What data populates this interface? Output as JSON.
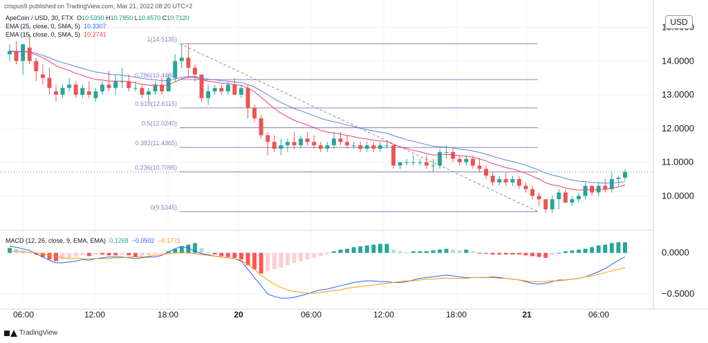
{
  "header_note": "crispus9 published on TradingView.com, Mar 21, 2022 08:20 UTC+2",
  "ohlc": {
    "symbol": "ApeCoin / USD, 30, FTX",
    "o_label": "O",
    "o": "10.5390",
    "h_label": "H",
    "h": "10.7850",
    "l_label": "L",
    "l": "10.4570",
    "c_label": "C",
    "c": "10.7120"
  },
  "ema25": {
    "label": "EMA (25, close, 0, SMA, 5)",
    "value": "10.3307"
  },
  "ema15": {
    "label": "EMA (15, close, 0, SMA, 5)",
    "value": "10.2741"
  },
  "macd": {
    "label": "MACD (12, 26, close, 9, EMA, EMA)",
    "hist": "0.1268",
    "macd": "−0.0502",
    "signal": "−0.1771"
  },
  "currency": "USD",
  "footer": "TradingView",
  "colors": {
    "up": "#26a69a",
    "down": "#ef5350",
    "ema25": "#5b7fe8",
    "ema15": "#ef3b6e",
    "fib": "#8e7cc3",
    "macd": "#2962ff",
    "signal": "#ff9800"
  },
  "chart_data": [
    {
      "type": "candlestick",
      "title": "ApeCoin / USD, 30, FTX",
      "x": [
        "06:00",
        "12:00",
        "18:00",
        "20",
        "06:00",
        "12:00",
        "18:00",
        "21",
        "06:00"
      ],
      "ylim": [
        9.0,
        15.4
      ],
      "yticks": [
        "10.0000",
        "11.0000",
        "12.0000",
        "13.0000",
        "14.0000",
        "15.0000"
      ],
      "price_label": "10.7120",
      "candles": [
        [
          14.2,
          14.5,
          14.0,
          14.3
        ],
        [
          14.3,
          14.6,
          13.9,
          14.0
        ],
        [
          14.0,
          14.5,
          13.6,
          14.5
        ],
        [
          14.4,
          14.8,
          13.9,
          14.0
        ],
        [
          14.0,
          14.1,
          13.4,
          13.7
        ],
        [
          13.6,
          13.9,
          13.3,
          13.5
        ],
        [
          13.5,
          13.8,
          13.0,
          13.2
        ],
        [
          13.1,
          13.3,
          12.8,
          13.0
        ],
        [
          13.0,
          13.3,
          12.9,
          13.2
        ],
        [
          13.2,
          13.5,
          13.1,
          13.3
        ],
        [
          13.3,
          13.4,
          12.9,
          13.0
        ],
        [
          13.0,
          13.3,
          12.9,
          13.2
        ],
        [
          13.1,
          13.4,
          12.9,
          13.0
        ],
        [
          12.9,
          13.2,
          12.8,
          13.1
        ],
        [
          13.1,
          13.4,
          13.0,
          13.3
        ],
        [
          13.3,
          13.7,
          13.1,
          13.2
        ],
        [
          13.2,
          13.6,
          13.0,
          13.4
        ],
        [
          13.4,
          13.8,
          13.2,
          13.4
        ],
        [
          13.4,
          13.6,
          13.1,
          13.2
        ],
        [
          13.2,
          13.4,
          13.1,
          13.2
        ],
        [
          13.2,
          13.3,
          12.9,
          13.0
        ],
        [
          13.0,
          13.2,
          12.8,
          13.1
        ],
        [
          13.1,
          13.4,
          13.0,
          13.3
        ],
        [
          13.3,
          13.5,
          13.0,
          13.1
        ],
        [
          13.1,
          13.6,
          13.1,
          13.5
        ],
        [
          13.5,
          14.2,
          13.4,
          14.0
        ],
        [
          14.0,
          14.5,
          13.8,
          14.1
        ],
        [
          14.1,
          14.5,
          13.5,
          13.8
        ],
        [
          13.8,
          13.9,
          13.4,
          13.6
        ],
        [
          13.6,
          13.6,
          12.8,
          12.9
        ],
        [
          12.9,
          13.3,
          12.7,
          13.1
        ],
        [
          13.1,
          13.3,
          13.0,
          13.2
        ],
        [
          13.2,
          13.3,
          13.0,
          13.1
        ],
        [
          13.1,
          13.4,
          13.0,
          13.3
        ],
        [
          13.3,
          13.5,
          13.0,
          13.0
        ],
        [
          13.0,
          13.3,
          12.9,
          13.2
        ],
        [
          13.2,
          13.3,
          12.3,
          12.6
        ],
        [
          12.6,
          12.7,
          12.2,
          12.3
        ],
        [
          12.3,
          12.4,
          11.7,
          11.8
        ],
        [
          11.8,
          11.9,
          11.2,
          11.6
        ],
        [
          11.6,
          11.8,
          11.3,
          11.4
        ],
        [
          11.4,
          11.7,
          11.2,
          11.5
        ],
        [
          11.5,
          11.7,
          11.3,
          11.6
        ],
        [
          11.6,
          11.9,
          11.4,
          11.5
        ],
        [
          11.5,
          11.8,
          11.4,
          11.7
        ],
        [
          11.7,
          11.9,
          11.5,
          11.6
        ],
        [
          11.6,
          11.8,
          11.4,
          11.5
        ],
        [
          11.5,
          11.6,
          11.3,
          11.4
        ],
        [
          11.4,
          11.6,
          11.3,
          11.5
        ],
        [
          11.5,
          11.9,
          11.4,
          11.7
        ],
        [
          11.7,
          11.9,
          11.5,
          11.6
        ],
        [
          11.6,
          11.8,
          11.4,
          11.5
        ],
        [
          11.5,
          11.6,
          11.4,
          11.5
        ],
        [
          11.5,
          11.6,
          11.3,
          11.4
        ],
        [
          11.4,
          11.6,
          11.3,
          11.5
        ],
        [
          11.5,
          11.6,
          11.3,
          11.4
        ],
        [
          11.4,
          11.6,
          11.3,
          11.5
        ],
        [
          11.5,
          11.6,
          11.4,
          11.5
        ],
        [
          11.5,
          11.5,
          10.8,
          10.9
        ],
        [
          10.9,
          11.0,
          10.8,
          11.0
        ],
        [
          11.0,
          11.1,
          10.9,
          11.0
        ],
        [
          11.0,
          11.2,
          10.9,
          11.0
        ],
        [
          11.0,
          11.1,
          10.9,
          11.0
        ],
        [
          11.0,
          11.2,
          10.8,
          10.9
        ],
        [
          10.9,
          11.1,
          10.7,
          10.9
        ],
        [
          10.9,
          11.4,
          10.8,
          11.3
        ],
        [
          11.3,
          11.5,
          11.1,
          11.3
        ],
        [
          11.3,
          11.4,
          11.0,
          11.1
        ],
        [
          11.1,
          11.2,
          10.9,
          11.0
        ],
        [
          11.0,
          11.2,
          10.9,
          11.1
        ],
        [
          11.1,
          11.2,
          10.8,
          10.9
        ],
        [
          10.9,
          11.1,
          10.7,
          10.8
        ],
        [
          10.8,
          10.9,
          10.5,
          10.6
        ],
        [
          10.6,
          10.7,
          10.3,
          10.4
        ],
        [
          10.4,
          10.6,
          10.3,
          10.5
        ],
        [
          10.5,
          10.7,
          10.3,
          10.4
        ],
        [
          10.4,
          10.6,
          10.3,
          10.5
        ],
        [
          10.5,
          10.6,
          10.2,
          10.3
        ],
        [
          10.3,
          10.4,
          10.1,
          10.2
        ],
        [
          10.2,
          10.3,
          9.9,
          10.0
        ],
        [
          10.0,
          10.1,
          9.7,
          9.9
        ],
        [
          9.9,
          9.9,
          9.5,
          9.6
        ],
        [
          9.6,
          10.0,
          9.5,
          9.9
        ],
        [
          9.9,
          10.2,
          9.6,
          10.1
        ],
        [
          10.1,
          10.2,
          9.8,
          9.8
        ],
        [
          9.8,
          10.0,
          9.7,
          9.9
        ],
        [
          9.9,
          10.1,
          9.8,
          10.0
        ],
        [
          10.0,
          10.4,
          9.9,
          10.3
        ],
        [
          10.3,
          10.3,
          10.0,
          10.1
        ],
        [
          10.1,
          10.4,
          10.0,
          10.3
        ],
        [
          10.3,
          10.5,
          10.1,
          10.2
        ],
        [
          10.2,
          10.7,
          10.1,
          10.5
        ],
        [
          10.5,
          10.6,
          10.3,
          10.54
        ],
        [
          10.54,
          10.79,
          10.46,
          10.71
        ]
      ],
      "fib_levels": [
        {
          "label": "1(14.5135)",
          "value": 14.5135
        },
        {
          "label": "0.786(13.4480)",
          "value": 13.448
        },
        {
          "label": "0.618(12.6115)",
          "value": 12.6115
        },
        {
          "label": "0.5(12.0240)",
          "value": 12.024
        },
        {
          "label": "0.382(11.4365)",
          "value": 11.4365
        },
        {
          "label": "0.236(10.7095)",
          "value": 10.7095
        },
        {
          "label": "0(9.5345)",
          "value": 9.5345
        }
      ]
    },
    {
      "type": "macd",
      "title": "MACD (12, 26, close, 9, EMA, EMA)",
      "ylim": [
        -0.6,
        0.25
      ],
      "yticks": [
        "0.0000",
        "−0.5000"
      ],
      "histogram": [
        0.06,
        0.05,
        0.03,
        0.0,
        -0.02,
        -0.05,
        -0.08,
        -0.1,
        -0.08,
        -0.06,
        -0.05,
        -0.03,
        -0.04,
        -0.02,
        -0.02,
        -0.03,
        -0.03,
        -0.02,
        -0.03,
        -0.05,
        -0.04,
        -0.03,
        -0.02,
        -0.01,
        0.02,
        0.05,
        0.08,
        0.1,
        0.12,
        0.06,
        0.01,
        -0.02,
        -0.04,
        -0.05,
        -0.06,
        -0.08,
        -0.15,
        -0.2,
        -0.25,
        -0.22,
        -0.2,
        -0.18,
        -0.15,
        -0.12,
        -0.1,
        -0.08,
        -0.06,
        -0.04,
        -0.02,
        0.02,
        0.04,
        0.05,
        0.07,
        0.08,
        0.09,
        0.1,
        0.11,
        0.11,
        0.04,
        0.02,
        0.01,
        0.02,
        0.02,
        0.02,
        0.03,
        0.04,
        0.05,
        0.04,
        0.03,
        0.04,
        0.02,
        -0.01,
        -0.01,
        -0.02,
        -0.02,
        -0.02,
        -0.02,
        -0.02,
        -0.03,
        -0.04,
        -0.05,
        -0.06,
        -0.03,
        0.0,
        0.02,
        0.03,
        0.04,
        0.05,
        0.07,
        0.09,
        0.1,
        0.12,
        0.13,
        0.13
      ],
      "macd": [
        0.08,
        0.07,
        0.05,
        0.03,
        -0.01,
        -0.05,
        -0.09,
        -0.12,
        -0.12,
        -0.11,
        -0.1,
        -0.08,
        -0.09,
        -0.07,
        -0.06,
        -0.05,
        -0.05,
        -0.05,
        -0.06,
        -0.07,
        -0.06,
        -0.05,
        -0.05,
        -0.03,
        0.01,
        0.05,
        0.08,
        0.06,
        0.02,
        -0.01,
        -0.02,
        -0.04,
        -0.05,
        -0.06,
        -0.07,
        -0.1,
        -0.2,
        -0.3,
        -0.4,
        -0.5,
        -0.53,
        -0.55,
        -0.55,
        -0.54,
        -0.52,
        -0.5,
        -0.47,
        -0.45,
        -0.44,
        -0.42,
        -0.4,
        -0.38,
        -0.36,
        -0.35,
        -0.34,
        -0.34,
        -0.35,
        -0.35,
        -0.36,
        -0.36,
        -0.35,
        -0.33,
        -0.31,
        -0.3,
        -0.29,
        -0.28,
        -0.27,
        -0.28,
        -0.29,
        -0.3,
        -0.3,
        -0.3,
        -0.3,
        -0.29,
        -0.3,
        -0.31,
        -0.32,
        -0.33,
        -0.35,
        -0.37,
        -0.38,
        -0.37,
        -0.35,
        -0.33,
        -0.33,
        -0.32,
        -0.31,
        -0.29,
        -0.26,
        -0.23,
        -0.19,
        -0.14,
        -0.09,
        -0.05
      ],
      "signal": [
        0.02,
        0.02,
        0.01,
        0.01,
        0.0,
        -0.01,
        -0.03,
        -0.04,
        -0.06,
        -0.07,
        -0.07,
        -0.07,
        -0.07,
        -0.07,
        -0.07,
        -0.07,
        -0.06,
        -0.06,
        -0.05,
        -0.05,
        -0.05,
        -0.04,
        -0.03,
        -0.02,
        -0.01,
        0.0,
        0.0,
        0.0,
        -0.01,
        -0.02,
        -0.03,
        -0.04,
        -0.05,
        -0.06,
        -0.07,
        -0.09,
        -0.14,
        -0.2,
        -0.27,
        -0.33,
        -0.38,
        -0.42,
        -0.45,
        -0.47,
        -0.48,
        -0.49,
        -0.49,
        -0.48,
        -0.47,
        -0.46,
        -0.45,
        -0.43,
        -0.42,
        -0.41,
        -0.4,
        -0.39,
        -0.38,
        -0.37,
        -0.36,
        -0.35,
        -0.34,
        -0.34,
        -0.33,
        -0.32,
        -0.32,
        -0.31,
        -0.31,
        -0.31,
        -0.31,
        -0.31,
        -0.3,
        -0.3,
        -0.3,
        -0.3,
        -0.31,
        -0.31,
        -0.32,
        -0.33,
        -0.34,
        -0.35,
        -0.35,
        -0.35,
        -0.34,
        -0.34,
        -0.33,
        -0.32,
        -0.31,
        -0.29,
        -0.28,
        -0.26,
        -0.24,
        -0.22,
        -0.2,
        -0.18
      ]
    }
  ]
}
